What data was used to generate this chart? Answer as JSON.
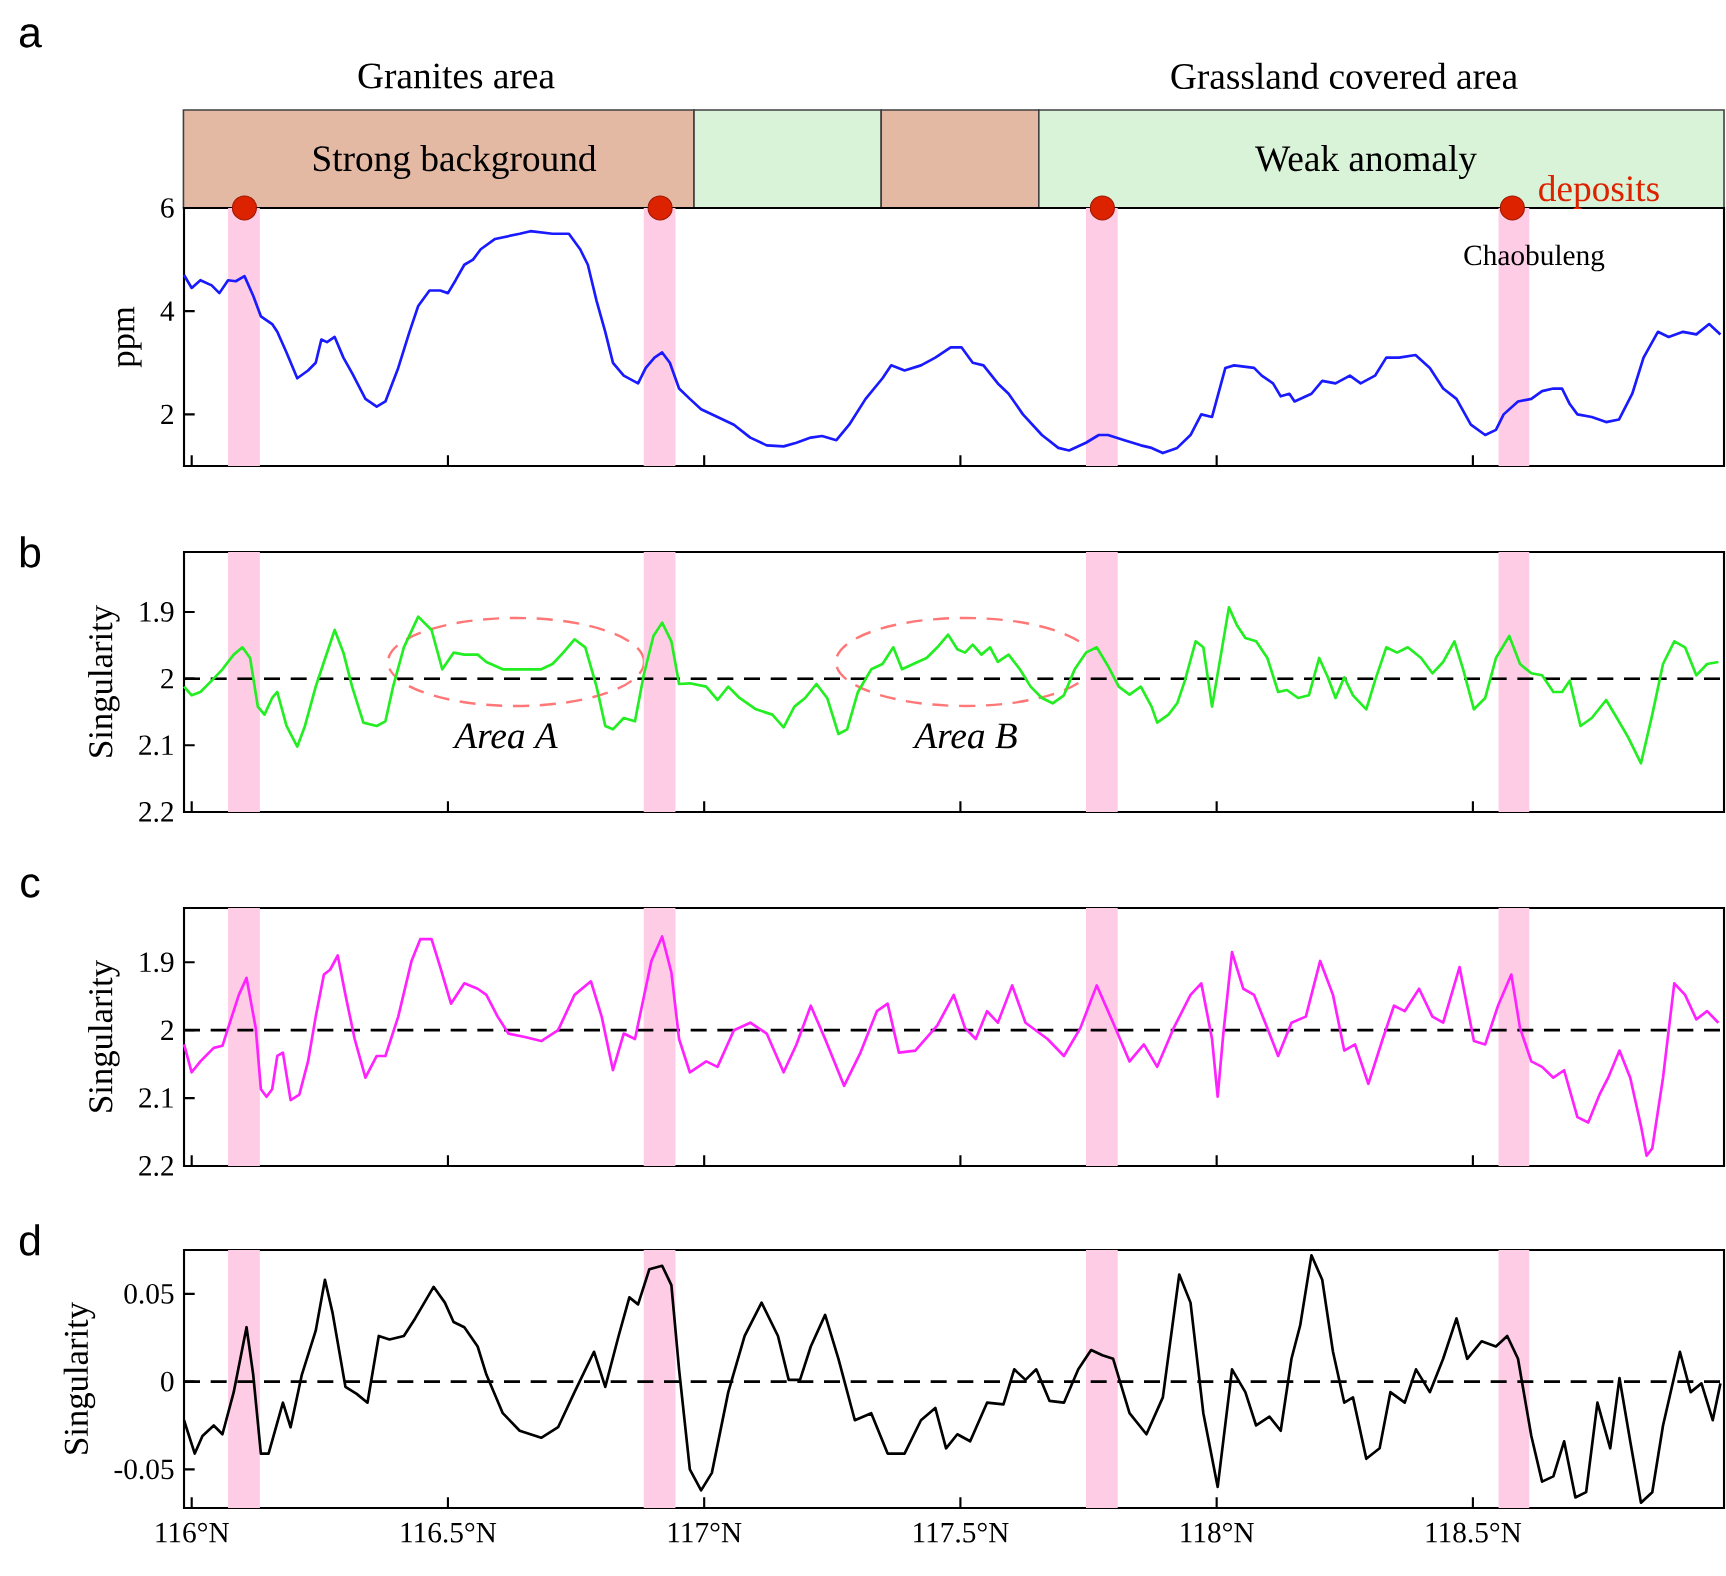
{
  "chart_data": [
    {
      "type": "line",
      "title": "a",
      "ylabel": "ppm",
      "xlim": [
        115.985,
        118.99
      ],
      "ylim": [
        1.0,
        6
      ],
      "yticks": [
        2,
        4,
        6
      ],
      "tick_labels": "y",
      "xticks": [
        {
          "value": 116,
          "label": null
        },
        {
          "value": 116.5,
          "label": null
        },
        {
          "value": 117,
          "label": null
        },
        {
          "value": 117.5,
          "label": null
        },
        {
          "value": 118,
          "label": null
        },
        {
          "value": 118.5,
          "label": null
        }
      ],
      "series": [
        {
          "color": "#1a1aff",
          "x": [
            115.985,
            116.0,
            116.017,
            116.039,
            116.054,
            116.071,
            116.086,
            116.103,
            116.12,
            116.135,
            116.157,
            116.167,
            116.185,
            116.206,
            116.227,
            116.242,
            116.253,
            116.264,
            116.279,
            116.296,
            116.313,
            116.339,
            116.361,
            116.378,
            116.403,
            116.425,
            116.442,
            116.464,
            116.485,
            116.5,
            116.515,
            116.532,
            116.549,
            116.564,
            116.592,
            116.64,
            116.661,
            116.704,
            116.736,
            116.758,
            116.773,
            116.79,
            116.807,
            116.822,
            116.843,
            116.871,
            116.886,
            116.903,
            116.918,
            116.933,
            116.951,
            116.972,
            116.994,
            117.026,
            117.058,
            117.09,
            117.122,
            117.155,
            117.18,
            117.208,
            117.23,
            117.258,
            117.283,
            117.315,
            117.348,
            117.365,
            117.391,
            117.423,
            117.451,
            117.481,
            117.502,
            117.524,
            117.545,
            117.573,
            117.594,
            117.622,
            117.659,
            117.691,
            117.712,
            117.745,
            117.77,
            117.788,
            117.82,
            117.852,
            117.873,
            117.895,
            117.923,
            117.949,
            117.97,
            117.991,
            118.017,
            118.034,
            118.073,
            118.088,
            118.11,
            118.125,
            118.142,
            118.152,
            118.185,
            118.206,
            118.232,
            118.26,
            118.281,
            118.309,
            118.331,
            118.356,
            118.388,
            118.416,
            118.442,
            118.468,
            118.496,
            118.524,
            118.545,
            118.56,
            118.588,
            118.614,
            118.635,
            118.657,
            118.674,
            118.689,
            118.704,
            118.732,
            118.76,
            118.785,
            118.811,
            118.833,
            118.861,
            118.882,
            118.91,
            118.936,
            118.961,
            118.983
          ],
          "values": [
            4.7,
            4.45,
            4.6,
            4.5,
            4.35,
            4.6,
            4.58,
            4.68,
            4.3,
            3.9,
            3.75,
            3.6,
            3.2,
            2.7,
            2.85,
            3.0,
            3.45,
            3.4,
            3.5,
            3.1,
            2.8,
            2.3,
            2.15,
            2.25,
            2.9,
            3.6,
            4.1,
            4.4,
            4.4,
            4.35,
            4.6,
            4.9,
            5.0,
            5.2,
            5.4,
            5.5,
            5.55,
            5.5,
            5.5,
            5.2,
            4.9,
            4.2,
            3.6,
            3.0,
            2.75,
            2.6,
            2.9,
            3.1,
            3.2,
            3.0,
            2.5,
            2.3,
            2.1,
            1.95,
            1.8,
            1.55,
            1.4,
            1.38,
            1.45,
            1.55,
            1.58,
            1.5,
            1.8,
            2.3,
            2.7,
            2.95,
            2.85,
            2.95,
            3.1,
            3.3,
            3.3,
            3.0,
            2.95,
            2.6,
            2.4,
            2.0,
            1.6,
            1.35,
            1.3,
            1.45,
            1.6,
            1.6,
            1.5,
            1.4,
            1.35,
            1.25,
            1.35,
            1.6,
            2.0,
            1.95,
            2.9,
            2.95,
            2.9,
            2.75,
            2.6,
            2.35,
            2.4,
            2.25,
            2.4,
            2.65,
            2.6,
            2.75,
            2.6,
            2.75,
            3.1,
            3.1,
            3.15,
            2.9,
            2.5,
            2.3,
            1.8,
            1.6,
            1.7,
            2.0,
            2.25,
            2.3,
            2.45,
            2.5,
            2.5,
            2.2,
            2.0,
            1.95,
            1.85,
            1.9,
            2.4,
            3.1,
            3.6,
            3.5,
            3.6,
            3.55,
            3.75,
            3.55
          ]
        },
        {
          "type": "scatter",
          "name": "deposits",
          "color": "#dd2200",
          "x": [
            116.103,
            116.914,
            117.777,
            118.577
          ],
          "values": [
            6,
            6,
            6,
            6
          ]
        }
      ],
      "bands": [
        {
          "axis": "x",
          "from": 116.071,
          "to": 116.133,
          "color": "#ffcce6"
        },
        {
          "axis": "x",
          "from": 116.882,
          "to": 116.944,
          "color": "#ffcce6"
        },
        {
          "axis": "x",
          "from": 117.745,
          "to": 117.807,
          "color": "#ffcce6"
        },
        {
          "axis": "x",
          "from": 118.55,
          "to": 118.61,
          "color": "#ffcce6"
        }
      ],
      "annotations": [
        "Granites area",
        "Grassland covered area",
        "Strong background",
        "Weak anomaly",
        "Chaobuleng"
      ]
    },
    {
      "type": "line",
      "title": "b",
      "ylabel": "Singularity",
      "xlim": [
        115.985,
        118.99
      ],
      "ylim": [
        2.2,
        1.81
      ],
      "yticks": [
        1.9,
        2,
        2.1,
        2.2
      ],
      "tick_labels": "y",
      "xticks": [
        {
          "value": 116,
          "label": null
        },
        {
          "value": 116.5,
          "label": null
        },
        {
          "value": 117,
          "label": null
        },
        {
          "value": 117.5,
          "label": null
        },
        {
          "value": 118,
          "label": null
        },
        {
          "value": 118.5,
          "label": null
        }
      ],
      "series": [
        {
          "color": "#22ee22",
          "x": [
            115.985,
            116.0,
            116.017,
            116.039,
            116.06,
            116.082,
            116.099,
            116.114,
            116.129,
            116.142,
            116.157,
            116.167,
            116.185,
            116.206,
            116.221,
            116.242,
            116.258,
            116.279,
            116.296,
            116.313,
            116.335,
            116.361,
            116.378,
            116.393,
            116.414,
            116.442,
            116.468,
            116.489,
            116.511,
            116.532,
            116.558,
            116.575,
            116.607,
            116.64,
            116.682,
            116.704,
            116.725,
            116.747,
            116.768,
            116.79,
            116.807,
            116.822,
            116.843,
            116.865,
            116.882,
            116.901,
            116.918,
            116.936,
            116.951,
            116.972,
            117.004,
            117.026,
            117.047,
            117.069,
            117.101,
            117.133,
            117.155,
            117.176,
            117.197,
            117.219,
            117.24,
            117.262,
            117.279,
            117.3,
            117.326,
            117.348,
            117.369,
            117.386,
            117.408,
            117.434,
            117.455,
            117.476,
            117.494,
            117.509,
            117.524,
            117.541,
            117.558,
            117.573,
            117.594,
            117.616,
            117.637,
            117.659,
            117.68,
            117.702,
            117.723,
            117.745,
            117.766,
            117.788,
            117.809,
            117.83,
            117.852,
            117.873,
            117.884,
            117.906,
            117.923,
            117.938,
            117.959,
            117.974,
            117.991,
            118.009,
            118.024,
            118.039,
            118.056,
            118.077,
            118.099,
            118.12,
            118.137,
            118.159,
            118.18,
            118.2,
            118.217,
            118.232,
            118.249,
            118.266,
            118.292,
            118.309,
            118.331,
            118.352,
            118.373,
            118.399,
            118.421,
            118.442,
            118.464,
            118.481,
            118.502,
            118.524,
            118.545,
            118.571,
            118.592,
            118.614,
            118.635,
            118.657,
            118.674,
            118.689,
            118.71,
            118.732,
            118.76,
            118.781,
            118.803,
            118.828,
            118.85,
            118.871,
            118.893,
            118.914,
            118.936,
            118.957,
            118.979
          ],
          "values": [
            2.012,
            2.025,
            2.02,
            2.003,
            1.986,
            1.964,
            1.953,
            1.969,
            2.042,
            2.054,
            2.029,
            2.02,
            2.071,
            2.102,
            2.071,
            2.012,
            1.975,
            1.927,
            1.961,
            2.012,
            2.066,
            2.071,
            2.064,
            2.012,
            1.953,
            1.907,
            1.927,
            1.986,
            1.961,
            1.964,
            1.964,
            1.975,
            1.986,
            1.986,
            1.986,
            1.978,
            1.961,
            1.941,
            1.953,
            2.012,
            2.071,
            2.076,
            2.059,
            2.064,
            1.995,
            1.936,
            1.916,
            1.944,
            2.008,
            2.007,
            2.012,
            2.032,
            2.012,
            2.029,
            2.046,
            2.054,
            2.073,
            2.042,
            2.029,
            2.008,
            2.029,
            2.083,
            2.076,
            2.02,
            1.986,
            1.978,
            1.953,
            1.986,
            1.978,
            1.969,
            1.953,
            1.934,
            1.956,
            1.961,
            1.949,
            1.964,
            1.953,
            1.975,
            1.964,
            1.986,
            2.012,
            2.029,
            2.037,
            2.025,
            1.986,
            1.961,
            1.953,
            1.981,
            2.012,
            2.024,
            2.012,
            2.042,
            2.066,
            2.054,
            2.037,
            2.003,
            1.944,
            1.953,
            2.042,
            1.961,
            1.893,
            1.919,
            1.939,
            1.944,
            1.969,
            2.02,
            2.017,
            2.029,
            2.025,
            1.969,
            1.998,
            2.029,
            1.998,
            2.025,
            2.046,
            2.003,
            1.953,
            1.961,
            1.953,
            1.969,
            1.992,
            1.975,
            1.944,
            1.986,
            2.046,
            2.029,
            1.969,
            1.936,
            1.978,
            1.992,
            1.995,
            2.02,
            2.02,
            2.003,
            2.071,
            2.059,
            2.032,
            2.059,
            2.088,
            2.127,
            2.054,
            1.978,
            1.944,
            1.953,
            1.995,
            1.978,
            1.975
          ]
        }
      ],
      "bands": [
        {
          "axis": "x",
          "from": 116.071,
          "to": 116.133,
          "color": "#ffcce6"
        },
        {
          "axis": "x",
          "from": 116.882,
          "to": 116.944,
          "color": "#ffcce6"
        },
        {
          "axis": "x",
          "from": 117.745,
          "to": 117.807,
          "color": "#ffcce6"
        },
        {
          "axis": "x",
          "from": 118.55,
          "to": 118.61,
          "color": "#ffcce6"
        }
      ],
      "annotations": [
        "Area A",
        "Area B"
      ],
      "ref_lines": [
        {
          "axis": "y",
          "value": 2,
          "line_style": "dashed",
          "color": "#000000"
        }
      ]
    },
    {
      "type": "line",
      "title": "c",
      "ylabel": "Singularity",
      "xlim": [
        115.985,
        118.99
      ],
      "ylim": [
        2.2,
        1.82
      ],
      "yticks": [
        1.9,
        2,
        2.1,
        2.2
      ],
      "tick_labels": "y",
      "xticks": [
        {
          "value": 116,
          "label": null
        },
        {
          "value": 116.5,
          "label": null
        },
        {
          "value": 117,
          "label": null
        },
        {
          "value": 117.5,
          "label": null
        },
        {
          "value": 118,
          "label": null
        },
        {
          "value": 118.5,
          "label": null
        }
      ],
      "series": [
        {
          "color": "#ff22ff",
          "x": [
            115.985,
            116.0,
            116.017,
            116.043,
            116.06,
            116.071,
            116.092,
            116.107,
            116.125,
            116.135,
            116.146,
            116.157,
            116.167,
            116.178,
            116.193,
            116.21,
            116.227,
            116.242,
            116.258,
            116.27,
            116.285,
            116.3,
            116.318,
            116.339,
            116.361,
            116.378,
            116.403,
            116.429,
            116.446,
            116.468,
            116.485,
            116.506,
            116.532,
            116.558,
            116.575,
            116.597,
            116.618,
            116.65,
            116.682,
            116.715,
            116.747,
            116.779,
            116.8,
            116.822,
            116.843,
            116.865,
            116.897,
            116.918,
            116.936,
            116.951,
            116.972,
            117.004,
            117.026,
            117.058,
            117.09,
            117.122,
            117.155,
            117.18,
            117.208,
            117.236,
            117.273,
            117.305,
            117.337,
            117.358,
            117.38,
            117.412,
            117.455,
            117.487,
            117.509,
            117.53,
            117.552,
            117.573,
            117.601,
            117.627,
            117.67,
            117.702,
            117.734,
            117.766,
            117.798,
            117.83,
            117.858,
            117.884,
            117.916,
            117.949,
            117.97,
            117.991,
            118.002,
            118.013,
            118.03,
            118.052,
            118.073,
            118.099,
            118.12,
            118.146,
            118.174,
            118.202,
            118.227,
            118.249,
            118.27,
            118.296,
            118.324,
            118.346,
            118.367,
            118.395,
            118.421,
            118.442,
            118.474,
            118.502,
            118.524,
            118.549,
            118.575,
            118.592,
            118.614,
            118.635,
            118.657,
            118.678,
            118.704,
            118.725,
            118.747,
            118.764,
            118.786,
            118.807,
            118.828,
            118.839,
            118.85,
            118.871,
            118.893,
            118.914,
            118.936,
            118.957,
            118.979
          ],
          "values": [
            2.021,
            2.062,
            2.046,
            2.026,
            2.023,
            1.997,
            1.948,
            1.923,
            1.997,
            2.087,
            2.098,
            2.087,
            2.038,
            2.033,
            2.103,
            2.095,
            2.046,
            1.98,
            1.918,
            1.911,
            1.89,
            1.948,
            2.013,
            2.07,
            2.038,
            2.038,
            1.98,
            1.898,
            1.866,
            1.866,
            1.907,
            1.961,
            1.931,
            1.939,
            1.948,
            1.98,
            2.005,
            2.01,
            2.016,
            2.0,
            1.948,
            1.928,
            1.98,
            2.059,
            2.005,
            2.013,
            1.898,
            1.862,
            1.915,
            2.013,
            2.062,
            2.046,
            2.054,
            2.0,
            1.989,
            2.005,
            2.062,
            2.021,
            1.964,
            2.013,
            2.082,
            2.033,
            1.972,
            1.961,
            2.033,
            2.03,
            1.993,
            1.948,
            1.997,
            2.013,
            1.972,
            1.989,
            1.934,
            1.989,
            2.013,
            2.038,
            1.997,
            1.934,
            1.989,
            2.046,
            2.021,
            2.054,
            1.997,
            1.948,
            1.931,
            2.013,
            2.098,
            2.005,
            1.885,
            1.939,
            1.948,
            1.997,
            2.038,
            1.989,
            1.98,
            1.898,
            1.948,
            2.03,
            2.021,
            2.079,
            2.013,
            1.964,
            1.972,
            1.939,
            1.98,
            1.989,
            1.907,
            2.016,
            2.021,
            1.964,
            1.918,
            1.997,
            2.046,
            2.054,
            2.07,
            2.059,
            2.128,
            2.136,
            2.095,
            2.07,
            2.03,
            2.07,
            2.141,
            2.185,
            2.174,
            2.07,
            1.931,
            1.948,
            1.984,
            1.972,
            1.989
          ]
        }
      ],
      "bands": [
        {
          "axis": "x",
          "from": 116.071,
          "to": 116.133,
          "color": "#ffcce6"
        },
        {
          "axis": "x",
          "from": 116.882,
          "to": 116.944,
          "color": "#ffcce6"
        },
        {
          "axis": "x",
          "from": 117.745,
          "to": 117.807,
          "color": "#ffcce6"
        },
        {
          "axis": "x",
          "from": 118.55,
          "to": 118.61,
          "color": "#ffcce6"
        }
      ],
      "ref_lines": [
        {
          "axis": "y",
          "value": 2,
          "line_style": "dashed",
          "color": "#000000"
        }
      ]
    },
    {
      "type": "line",
      "title": "d",
      "ylabel": "Singularity",
      "xlim": [
        115.985,
        118.99
      ],
      "ylim": [
        -0.072,
        0.075
      ],
      "yticks": [
        -0.05,
        0,
        0.05
      ],
      "xticks": [
        {
          "value": 116,
          "label": "116°N"
        },
        {
          "value": 116.5,
          "label": "116.5°N"
        },
        {
          "value": 117,
          "label": "117°N"
        },
        {
          "value": 117.5,
          "label": "117.5°N"
        },
        {
          "value": 118,
          "label": "118°N"
        },
        {
          "value": 118.5,
          "label": "118.5°N"
        }
      ],
      "series": [
        {
          "color": "#000000",
          "x": [
            115.985,
            116.006,
            116.021,
            116.043,
            116.06,
            116.082,
            116.107,
            116.12,
            116.135,
            116.15,
            116.178,
            116.193,
            116.215,
            116.242,
            116.26,
            116.275,
            116.3,
            116.322,
            116.343,
            116.365,
            116.386,
            116.414,
            116.436,
            116.472,
            116.494,
            116.511,
            116.532,
            116.558,
            116.575,
            116.607,
            116.64,
            116.682,
            116.715,
            116.747,
            116.785,
            116.807,
            116.833,
            116.854,
            116.871,
            116.893,
            116.918,
            116.936,
            116.951,
            116.972,
            116.994,
            117.015,
            117.047,
            117.079,
            117.112,
            117.144,
            117.165,
            117.187,
            117.208,
            117.236,
            117.262,
            117.294,
            117.326,
            117.358,
            117.391,
            117.423,
            117.451,
            117.472,
            117.494,
            117.519,
            117.552,
            117.584,
            117.605,
            117.627,
            117.648,
            117.674,
            117.702,
            117.73,
            117.755,
            117.777,
            117.798,
            117.83,
            117.863,
            117.895,
            117.927,
            117.949,
            117.974,
            118.002,
            118.03,
            118.056,
            118.077,
            118.103,
            118.125,
            118.146,
            118.163,
            118.185,
            118.206,
            118.227,
            118.249,
            118.266,
            118.292,
            118.318,
            118.339,
            118.367,
            118.389,
            118.416,
            118.442,
            118.468,
            118.489,
            118.517,
            118.545,
            118.567,
            118.588,
            118.614,
            118.635,
            118.657,
            118.678,
            118.7,
            118.721,
            118.743,
            118.768,
            118.786,
            118.807,
            118.828,
            118.85,
            118.871,
            118.904,
            118.925,
            118.946,
            118.968,
            118.983
          ],
          "values": [
            -0.022,
            -0.041,
            -0.031,
            -0.025,
            -0.03,
            -0.006,
            0.031,
            0.004,
            -0.041,
            -0.041,
            -0.012,
            -0.026,
            0.004,
            0.029,
            0.058,
            0.039,
            -0.003,
            -0.007,
            -0.012,
            0.026,
            0.024,
            0.026,
            0.036,
            0.054,
            0.045,
            0.034,
            0.031,
            0.02,
            0.004,
            -0.018,
            -0.028,
            -0.032,
            -0.026,
            -0.006,
            0.017,
            -0.003,
            0.026,
            0.048,
            0.044,
            0.064,
            0.066,
            0.055,
            0.007,
            -0.05,
            -0.062,
            -0.052,
            -0.006,
            0.026,
            0.045,
            0.026,
            0.001,
            0.001,
            0.02,
            0.038,
            0.013,
            -0.022,
            -0.018,
            -0.041,
            -0.041,
            -0.022,
            -0.015,
            -0.038,
            -0.03,
            -0.034,
            -0.012,
            -0.013,
            0.007,
            0.001,
            0.007,
            -0.011,
            -0.012,
            0.007,
            0.018,
            0.015,
            0.013,
            -0.018,
            -0.03,
            -0.009,
            0.061,
            0.045,
            -0.018,
            -0.06,
            0.007,
            -0.006,
            -0.025,
            -0.02,
            -0.028,
            0.013,
            0.032,
            0.072,
            0.058,
            0.017,
            -0.012,
            -0.009,
            -0.044,
            -0.038,
            -0.006,
            -0.012,
            0.007,
            -0.006,
            0.013,
            0.036,
            0.013,
            0.023,
            0.02,
            0.026,
            0.013,
            -0.031,
            -0.057,
            -0.054,
            -0.034,
            -0.066,
            -0.063,
            -0.012,
            -0.038,
            0.002,
            -0.034,
            -0.069,
            -0.063,
            -0.025,
            0.017,
            -0.006,
            -0.001,
            -0.022,
            -0.001
          ]
        }
      ],
      "bands": [
        {
          "axis": "x",
          "from": 116.071,
          "to": 116.133,
          "color": "#ffcce6"
        },
        {
          "axis": "x",
          "from": 116.882,
          "to": 116.944,
          "color": "#ffcce6"
        },
        {
          "axis": "x",
          "from": 117.745,
          "to": 117.807,
          "color": "#ffcce6"
        },
        {
          "axis": "x",
          "from": 118.55,
          "to": 118.61,
          "color": "#ffcce6"
        }
      ],
      "ref_lines": [
        {
          "axis": "y",
          "value": 0,
          "line_style": "dashed",
          "color": "#000000"
        }
      ]
    }
  ]
}
